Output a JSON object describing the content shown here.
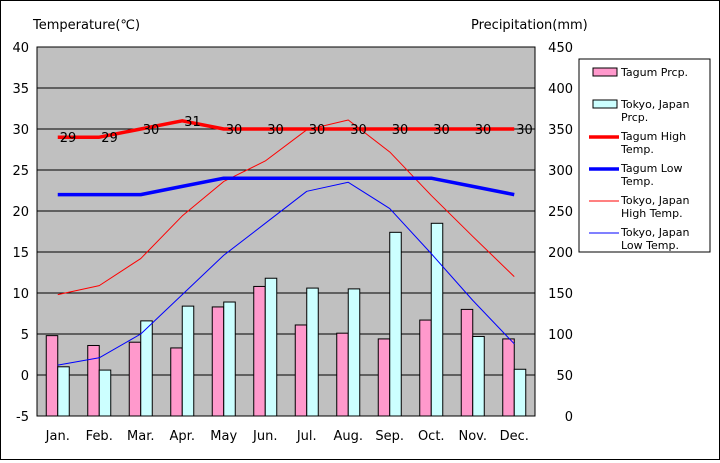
{
  "chart_data": {
    "type": "bar+line",
    "categories": [
      "Jan.",
      "Feb.",
      "Mar.",
      "Apr.",
      "May",
      "Jun.",
      "Jul.",
      "Aug.",
      "Sep.",
      "Oct.",
      "Nov.",
      "Dec."
    ],
    "left_axis": {
      "label": "Temperature(℃)",
      "range": [
        -5,
        40
      ],
      "ticks": [
        -5,
        0,
        5,
        10,
        15,
        20,
        25,
        30,
        35,
        40
      ]
    },
    "right_axis": {
      "label": "Precipitation(mm)",
      "range": [
        0,
        450
      ],
      "ticks": [
        0,
        50,
        100,
        150,
        200,
        250,
        300,
        350,
        400,
        450
      ]
    },
    "bar_series": [
      {
        "name": "Tagum Prcp.",
        "color": "#ff99cc",
        "values": [
          98,
          86,
          90,
          83,
          133,
          158,
          111,
          101,
          94,
          117,
          130,
          94
        ]
      },
      {
        "name": "Tokyo, Japan Prcp.",
        "color": "#ccffff",
        "values": [
          60,
          56,
          116,
          134,
          139,
          168,
          156,
          155,
          224,
          235,
          97,
          57
        ]
      }
    ],
    "line_series": [
      {
        "name": "Tagum High Temp.",
        "color": "#ff0000",
        "width": 3.5,
        "values": [
          29,
          29,
          30,
          31,
          30,
          30,
          30,
          30,
          30,
          30,
          30,
          30
        ],
        "labels": [
          "29",
          "29",
          "30",
          "31",
          "30",
          "30",
          "30",
          "30",
          "30",
          "30",
          "30",
          "30"
        ]
      },
      {
        "name": "Tagum Low Temp.",
        "color": "#0000ff",
        "width": 3.5,
        "values": [
          22,
          22,
          22,
          23,
          24,
          24,
          24,
          24,
          24,
          24,
          23,
          22
        ]
      },
      {
        "name": "Tokyo, Japan High Temp.",
        "color": "#ff0000",
        "width": 1,
        "values": [
          9.8,
          10.9,
          14.2,
          19.4,
          23.6,
          26.1,
          29.9,
          31.1,
          27.2,
          21.9,
          16.9,
          12.0
        ]
      },
      {
        "name": "Tokyo, Japan Low Temp.",
        "color": "#0000ff",
        "width": 1,
        "values": [
          1.2,
          2.1,
          5.0,
          9.8,
          14.6,
          18.5,
          22.4,
          23.5,
          20.3,
          14.8,
          9.1,
          3.8
        ]
      }
    ],
    "legend": [
      {
        "lines": [
          "Tagum Prcp."
        ],
        "kind": "bar",
        "color": "#ff99cc"
      },
      {
        "lines": [
          "Tokyo, Japan",
          "Prcp."
        ],
        "kind": "bar",
        "color": "#ccffff"
      },
      {
        "lines": [
          "Tagum High",
          "Temp."
        ],
        "kind": "line",
        "color": "#ff0000",
        "width": 3.5
      },
      {
        "lines": [
          "Tagum Low",
          "Temp."
        ],
        "kind": "line",
        "color": "#0000ff",
        "width": 3.5
      },
      {
        "lines": [
          "Tokyo, Japan",
          "High Temp."
        ],
        "kind": "line",
        "color": "#ff0000",
        "width": 1
      },
      {
        "lines": [
          "Tokyo, Japan",
          "Low Temp."
        ],
        "kind": "line",
        "color": "#0000ff",
        "width": 1
      }
    ],
    "legend_position": "right",
    "grid": true,
    "plot_background": "#c0c0c0"
  }
}
